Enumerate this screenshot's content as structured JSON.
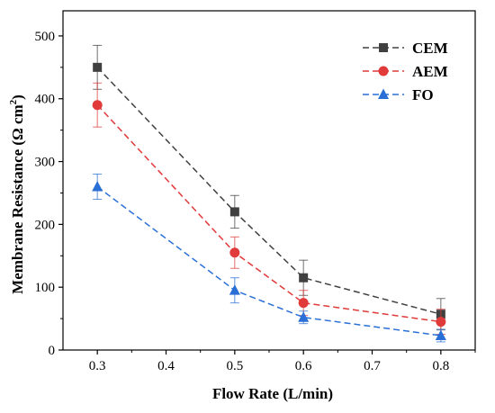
{
  "chart_data": {
    "type": "line",
    "xlabel": "Flow Rate (L/min)",
    "ylabel": "Membrane Resistance (Ω cm",
    "ylabel_superscript": "2",
    "ylabel_close": ")",
    "xlim": [
      0.25,
      0.85
    ],
    "ylim": [
      0,
      540
    ],
    "xticks": [
      0.3,
      0.4,
      0.5,
      0.6,
      0.7,
      0.8
    ],
    "yticks": [
      0,
      100,
      200,
      300,
      400,
      500
    ],
    "xtick_labels": [
      "0.3",
      "0.4",
      "0.5",
      "0.6",
      "0.7",
      "0.8"
    ],
    "ytick_labels": [
      "0",
      "100",
      "200",
      "300",
      "400",
      "500"
    ],
    "grid": false,
    "legend_position": "top-right",
    "x": [
      0.3,
      0.5,
      0.6,
      0.8
    ],
    "series": [
      {
        "name": "CEM",
        "color": "#404040",
        "marker": "square",
        "values": [
          450,
          220,
          115,
          57
        ],
        "errors": [
          35,
          26,
          28,
          25
        ]
      },
      {
        "name": "AEM",
        "color": "#e03a3a",
        "marker": "circle",
        "values": [
          390,
          155,
          75,
          45
        ],
        "errors": [
          35,
          25,
          20,
          20
        ]
      },
      {
        "name": "FO",
        "color": "#2a6fd6",
        "marker": "triangle",
        "values": [
          260,
          95,
          52,
          23
        ],
        "errors": [
          20,
          20,
          10,
          10
        ]
      }
    ]
  }
}
